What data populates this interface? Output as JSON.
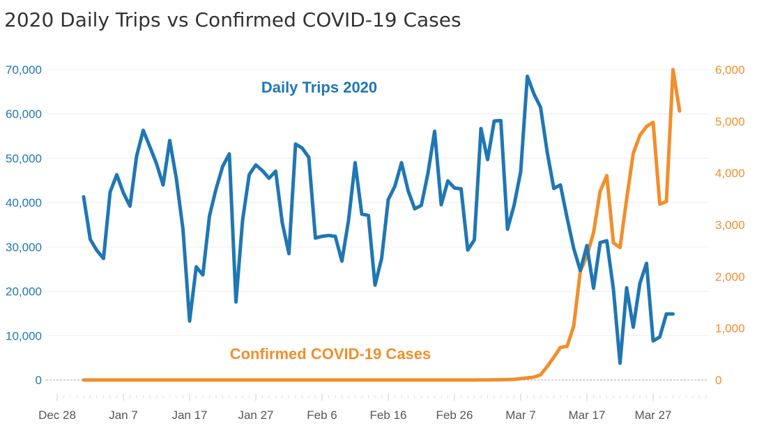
{
  "colors": {
    "trips": "#1f77b4",
    "cases": "#f28e2b",
    "grid": "#eeeeee",
    "zero": "#aaaaaa"
  },
  "chart_data": {
    "type": "line",
    "title": "2020 Daily Trips vs Confirmed COVID-19 Cases",
    "x_tick_labels": [
      "Dec 28",
      "Jan 7",
      "Jan 17",
      "Jan 27",
      "Feb 6",
      "Feb 16",
      "Feb 26",
      "Mar 7",
      "Mar 17",
      "Mar 27"
    ],
    "y_left": {
      "range": [
        0,
        70000
      ],
      "ticks": [
        0,
        10000,
        20000,
        30000,
        40000,
        50000,
        60000,
        70000
      ],
      "tick_labels": [
        "0",
        "10,000",
        "20,000",
        "30,000",
        "40,000",
        "50,000",
        "60,000",
        "70,000"
      ]
    },
    "y_right": {
      "range": [
        0,
        6000
      ],
      "ticks": [
        0,
        1000,
        2000,
        3000,
        4000,
        5000,
        6000
      ],
      "tick_labels": [
        "0",
        "1,000",
        "2,000",
        "3,000",
        "4,000",
        "5,000",
        "6,000"
      ]
    },
    "grid": true,
    "series": [
      {
        "name": "Daily Trips 2020",
        "axis": "left",
        "start_date": "2020-01-01",
        "values": [
          41300,
          31700,
          29200,
          27400,
          42400,
          46300,
          42200,
          39200,
          50500,
          56300,
          52600,
          48800,
          44000,
          54000,
          45400,
          34000,
          13300,
          25500,
          23700,
          37000,
          43100,
          48200,
          51000,
          17600,
          36000,
          46300,
          48500,
          47200,
          45500,
          47100,
          35400,
          28500,
          53200,
          52300,
          50200,
          32000,
          32400,
          32600,
          32400,
          26800,
          36000,
          49000,
          37400,
          37100,
          21400,
          27400,
          40700,
          43700,
          49000,
          42700,
          38600,
          39400,
          46700,
          56100,
          39500,
          44900,
          43300,
          43100,
          29300,
          31600,
          56700,
          49700,
          58400,
          58500,
          34000,
          39400,
          47000,
          68500,
          64500,
          61500,
          51400,
          43200,
          44000,
          36600,
          29700,
          24700,
          30300,
          20700,
          31000,
          31400,
          20500,
          3800,
          20800,
          11900,
          21800,
          26300,
          8800,
          9700,
          14900,
          14900
        ]
      },
      {
        "name": "Confirmed COVID-19 Cases",
        "axis": "right",
        "start_date": "2020-01-01",
        "values": [
          0,
          0,
          0,
          0,
          0,
          0,
          0,
          0,
          0,
          0,
          0,
          0,
          0,
          0,
          0,
          0,
          0,
          0,
          0,
          0,
          0,
          0,
          0,
          0,
          0,
          0,
          0,
          0,
          0,
          0,
          0,
          0,
          0,
          0,
          0,
          0,
          0,
          0,
          0,
          0,
          0,
          0,
          0,
          0,
          0,
          0,
          0,
          0,
          0,
          0,
          0,
          0,
          0,
          0,
          0,
          0,
          0,
          0,
          0,
          0,
          1,
          2,
          3,
          5,
          8,
          12,
          25,
          40,
          55,
          100,
          260,
          440,
          630,
          650,
          1040,
          2100,
          2400,
          2850,
          3650,
          3950,
          2650,
          2560,
          3500,
          4380,
          4730,
          4900,
          4980,
          3400,
          3450,
          6000,
          5200
        ]
      }
    ],
    "annotations": [
      "Daily Trips 2020",
      "Confirmed COVID-19 Cases"
    ]
  }
}
